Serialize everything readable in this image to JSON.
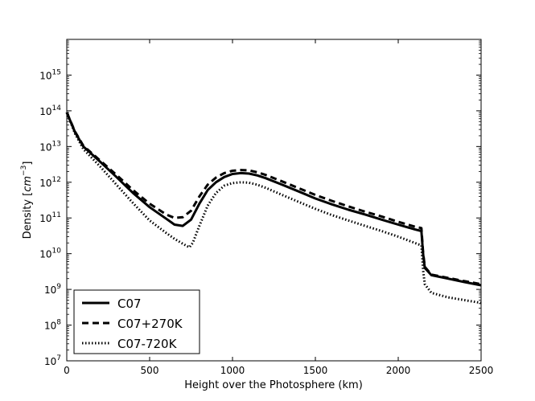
{
  "chart_data": {
    "type": "line",
    "title": "",
    "xlabel": "Height over the Photosphere (km)",
    "ylabel": "Density [cm^-3]",
    "ylabel_parts": {
      "prefix": "Density [",
      "var": "cm",
      "exp": "−3",
      "suffix": "]"
    },
    "xlim": [
      0,
      2500
    ],
    "ylim": [
      10000000.0,
      1e+16
    ],
    "yscale": "log",
    "xticks": [
      0,
      500,
      1000,
      1500,
      2000,
      2500
    ],
    "yticks": [
      {
        "value": 10000000.0,
        "base": "10",
        "exp": "7"
      },
      {
        "value": 100000000.0,
        "base": "10",
        "exp": "8"
      },
      {
        "value": 1000000000.0,
        "base": "10",
        "exp": "9"
      },
      {
        "value": 10000000000.0,
        "base": "10",
        "exp": "10"
      },
      {
        "value": 100000000000.0,
        "base": "10",
        "exp": "11"
      },
      {
        "value": 1000000000000.0,
        "base": "10",
        "exp": "12"
      },
      {
        "value": 10000000000000.0,
        "base": "10",
        "exp": "13"
      },
      {
        "value": 100000000000000.0,
        "base": "10",
        "exp": "14"
      },
      {
        "value": 1000000000000000.0,
        "base": "10",
        "exp": "15"
      }
    ],
    "legend_position": "bottom-left",
    "series": [
      {
        "name": "C07",
        "style": "solid",
        "x": [
          0,
          50,
          100,
          200,
          300,
          400,
          500,
          600,
          650,
          700,
          750,
          800,
          850,
          900,
          950,
          1000,
          1050,
          1100,
          1150,
          1200,
          1300,
          1400,
          1500,
          1600,
          1700,
          1800,
          1900,
          2000,
          2100,
          2140,
          2150,
          2160,
          2200,
          2300,
          2400,
          2500
        ],
        "y": [
          90000000000000.0,
          25000000000000.0,
          10000000000000.0,
          3800000000000.0,
          1400000000000.0,
          500000000000.0,
          200000000000.0,
          95000000000.0,
          65000000000.0,
          60000000000.0,
          90000000000.0,
          250000000000.0,
          600000000000.0,
          1000000000000.0,
          1400000000000.0,
          1700000000000.0,
          1800000000000.0,
          1750000000000.0,
          1550000000000.0,
          1300000000000.0,
          850000000000.0,
          550000000000.0,
          350000000000.0,
          240000000000.0,
          170000000000.0,
          125000000000.0,
          90000000000.0,
          65000000000.0,
          48000000000.0,
          43000000000.0,
          10000000000.0,
          4000000000.0,
          2500000000.0,
          2000000000.0,
          1600000000.0,
          1300000000.0
        ]
      },
      {
        "name": "C07+270K",
        "style": "dashed",
        "x": [
          0,
          50,
          100,
          200,
          300,
          400,
          500,
          600,
          650,
          700,
          750,
          800,
          850,
          900,
          950,
          1000,
          1050,
          1100,
          1150,
          1200,
          1300,
          1400,
          1500,
          1600,
          1700,
          1800,
          1900,
          2000,
          2100,
          2140,
          2150,
          2160,
          2200,
          2300,
          2400,
          2500
        ],
        "y": [
          90000000000000.0,
          26000000000000.0,
          10500000000000.0,
          4100000000000.0,
          1600000000000.0,
          600000000000.0,
          250000000000.0,
          125000000000.0,
          100000000000.0,
          105000000000.0,
          160000000000.0,
          400000000000.0,
          850000000000.0,
          1350000000000.0,
          1800000000000.0,
          2100000000000.0,
          2200000000000.0,
          2150000000000.0,
          1900000000000.0,
          1600000000000.0,
          1050000000000.0,
          680000000000.0,
          440000000000.0,
          300000000000.0,
          210000000000.0,
          150000000000.0,
          110000000000.0,
          78000000000.0,
          57000000000.0,
          52000000000.0,
          11000000000.0,
          4300000000.0,
          2600000000.0,
          2100000000.0,
          1700000000.0,
          1400000000.0
        ]
      },
      {
        "name": "C07-720K",
        "style": "dotted",
        "x": [
          0,
          50,
          100,
          200,
          300,
          400,
          500,
          600,
          650,
          700,
          740,
          760,
          800,
          850,
          900,
          950,
          1000,
          1050,
          1100,
          1150,
          1200,
          1300,
          1400,
          1500,
          1600,
          1700,
          1800,
          1900,
          2000,
          2100,
          2140,
          2150,
          2160,
          2200,
          2300,
          2400,
          2500
        ],
        "y": [
          90000000000000.0,
          23000000000000.0,
          8500000000000.0,
          2800000000000.0,
          850000000000.0,
          260000000000.0,
          85000000000.0,
          38000000000.0,
          26000000000.0,
          19000000000.0,
          15000000000.0,
          20000000000.0,
          60000000000.0,
          220000000000.0,
          500000000000.0,
          800000000000.0,
          950000000000.0,
          1000000000000.0,
          970000000000.0,
          850000000000.0,
          700000000000.0,
          440000000000.0,
          280000000000.0,
          180000000000.0,
          120000000000.0,
          85000000000.0,
          60000000000.0,
          43000000000.0,
          30000000000.0,
          20000000000.0,
          17000000000.0,
          3500000000.0,
          1400000000.0,
          800000000.0,
          600000000.0,
          500000000.0,
          420000000.0
        ]
      }
    ]
  }
}
